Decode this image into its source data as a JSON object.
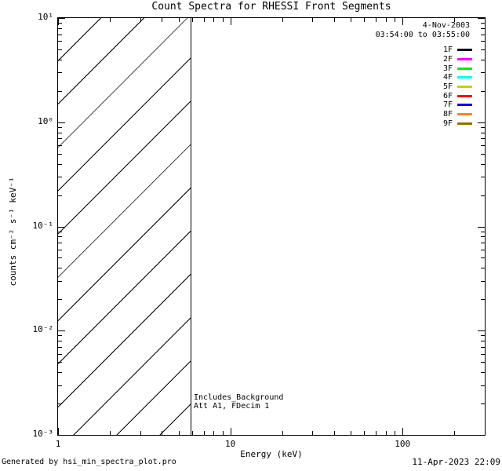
{
  "chart_data": {
    "type": "line",
    "title": "Count Spectra for RHESSI Front Segments",
    "xlabel": "Energy (keV)",
    "ylabel": "counts cm⁻² s⁻¹ keV⁻¹",
    "xscale": "log",
    "yscale": "log",
    "xlim": [
      1,
      300
    ],
    "ylim": [
      0.001,
      10
    ],
    "grid": false,
    "x_major_ticks": [
      {
        "value": 1,
        "label": "1"
      },
      {
        "value": 10,
        "label": "10"
      },
      {
        "value": 100,
        "label": "100"
      }
    ],
    "y_major_ticks": [
      {
        "value": 10,
        "label": "10¹"
      },
      {
        "value": 1,
        "label": "10⁰"
      },
      {
        "value": 0.1,
        "label": "10⁻¹"
      },
      {
        "value": 0.01,
        "label": "10⁻²"
      },
      {
        "value": 0.001,
        "label": "10⁻³"
      }
    ],
    "hatched_region": {
      "x_start_kev": 1,
      "x_end_kev": 6
    },
    "legend": {
      "position": "top-right",
      "date": "4-Nov-2003",
      "time_range": "03:54:00 to 03:55:00"
    },
    "series": [
      {
        "name": "1F",
        "color": "#000000",
        "values": []
      },
      {
        "name": "2F",
        "color": "#ff00ff",
        "values": []
      },
      {
        "name": "3F",
        "color": "#00ee00",
        "values": []
      },
      {
        "name": "4F",
        "color": "#00ffff",
        "values": []
      },
      {
        "name": "5F",
        "color": "#d6c800",
        "values": []
      },
      {
        "name": "6F",
        "color": "#ff0000",
        "values": []
      },
      {
        "name": "7F",
        "color": "#0000ff",
        "values": []
      },
      {
        "name": "8F",
        "color": "#ff8800",
        "values": []
      },
      {
        "name": "9F",
        "color": "#8a7400",
        "values": []
      }
    ],
    "annotations": [
      "Includes_Background",
      "Att A1, FDecim 1"
    ]
  },
  "footer": {
    "left": "Generated by hsi_min_spectra_plot.pro",
    "right": "11-Apr-2023 22:09"
  }
}
